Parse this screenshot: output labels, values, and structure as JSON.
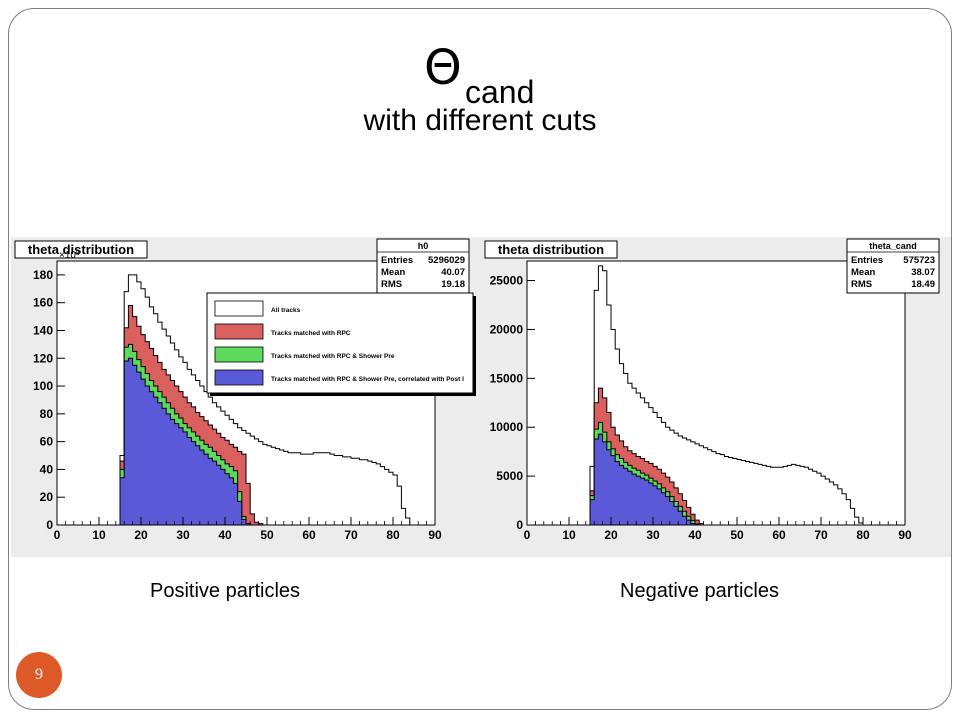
{
  "slide": {
    "title_symbol": "Θ",
    "title_subscript": "cand",
    "subtitle": "with different cuts",
    "slide_number": "9",
    "caption_left": "Positive particles",
    "caption_right": "Negative particles"
  },
  "chart_data": [
    {
      "type": "histogram",
      "title": "theta distribution",
      "stats": {
        "name": "h0",
        "rows": [
          [
            "Entries",
            "5296029"
          ],
          [
            "Mean",
            "40.07"
          ],
          [
            "RMS",
            "19.18"
          ]
        ]
      },
      "y_multiplier": "×10³",
      "xlim": [
        0,
        90
      ],
      "ylim": [
        0,
        190
      ],
      "x_ticks": [
        0,
        10,
        20,
        30,
        40,
        50,
        60,
        70,
        80,
        90
      ],
      "y_ticks": [
        0,
        20,
        40,
        60,
        80,
        100,
        120,
        140,
        160,
        180
      ],
      "bin_width": 1,
      "x_start": 15,
      "legend": [
        {
          "label": "All tracks",
          "color": "#ffffff"
        },
        {
          "label": "Tracks matched with RPC",
          "color": "#d9605f"
        },
        {
          "label": "Tracks matched with RPC & Shower Pre",
          "color": "#5dd95d"
        },
        {
          "label": "Tracks matched with RPC & Shower Pre, correlated with Post I",
          "color": "#5a5ad9"
        }
      ],
      "series": [
        {
          "name": "All tracks",
          "color": "#ffffff",
          "values": [
            50,
            168,
            180,
            180,
            175,
            170,
            164,
            157,
            152,
            146,
            141,
            136,
            131,
            126,
            121,
            117,
            112,
            108,
            104,
            100,
            96,
            92,
            88,
            85,
            82,
            79,
            76,
            73,
            70,
            68,
            66,
            64,
            62,
            60,
            58,
            57,
            56,
            55,
            54,
            53,
            52,
            52,
            52,
            51,
            51,
            51,
            52,
            52,
            52,
            52,
            51,
            50,
            50,
            49,
            49,
            48,
            48,
            47,
            47,
            46,
            45,
            44,
            42,
            40,
            38,
            36,
            28,
            12,
            5,
            0
          ]
        },
        {
          "name": "Tracks matched with RPC",
          "color": "#d9605f",
          "values": [
            46,
            142,
            158,
            150,
            143,
            137,
            132,
            127,
            122,
            117,
            112,
            108,
            104,
            100,
            96,
            92,
            88,
            85,
            81,
            78,
            75,
            72,
            69,
            66,
            63,
            61,
            58,
            56,
            53,
            51,
            30,
            8,
            2,
            1,
            0
          ]
        },
        {
          "name": "Tracks matched with RPC & Shower Pre",
          "color": "#5dd95d",
          "values": [
            40,
            128,
            130,
            125,
            119,
            114,
            109,
            104,
            100,
            96,
            92,
            88,
            84,
            80,
            77,
            73,
            70,
            67,
            64,
            61,
            58,
            56,
            53,
            50,
            47,
            44,
            42,
            39,
            24,
            6,
            1,
            0
          ]
        },
        {
          "name": "Tracks matched with RPC & Shower Pre, correlated with Post I",
          "color": "#5a5ad9",
          "values": [
            34,
            118,
            120,
            115,
            110,
            105,
            100,
            96,
            92,
            88,
            84,
            80,
            76,
            73,
            70,
            67,
            63,
            60,
            57,
            54,
            51,
            48,
            46,
            43,
            40,
            37,
            34,
            30,
            17,
            4,
            1,
            0
          ]
        }
      ]
    },
    {
      "type": "histogram",
      "title": "theta distribution",
      "stats": {
        "name": "theta_cand",
        "rows": [
          [
            "Entries",
            "575723"
          ],
          [
            "Mean",
            "38.07"
          ],
          [
            "RMS",
            "18.49"
          ]
        ]
      },
      "xlim": [
        0,
        90
      ],
      "ylim": [
        0,
        27000
      ],
      "x_ticks": [
        0,
        10,
        20,
        30,
        40,
        50,
        60,
        70,
        80,
        90
      ],
      "y_ticks": [
        0,
        5000,
        10000,
        15000,
        20000,
        25000
      ],
      "bin_width": 1,
      "x_start": 15,
      "series": [
        {
          "name": "All tracks",
          "color": "#ffffff",
          "values": [
            6000,
            24000,
            26500,
            26000,
            22500,
            20000,
            18000,
            16500,
            15500,
            14500,
            14000,
            13500,
            13000,
            12500,
            12000,
            11500,
            11000,
            10500,
            10000,
            9700,
            9400,
            9100,
            8900,
            8700,
            8500,
            8300,
            8100,
            7900,
            7700,
            7500,
            7300,
            7200,
            7000,
            6900,
            6800,
            6700,
            6600,
            6500,
            6400,
            6300,
            6200,
            6100,
            6000,
            5900,
            5900,
            5900,
            6000,
            6100,
            6200,
            6100,
            6000,
            5900,
            5700,
            5500,
            5300,
            5000,
            4700,
            4400,
            4100,
            3700,
            3200,
            2600,
            1700,
            800,
            200,
            0
          ]
        },
        {
          "name": "Tracks matched with RPC",
          "color": "#d9605f",
          "values": [
            3500,
            12500,
            14000,
            13000,
            11500,
            10000,
            9200,
            8600,
            8000,
            7600,
            7300,
            7000,
            6800,
            6500,
            6300,
            6000,
            5700,
            5300,
            4900,
            4400,
            3800,
            3200,
            2500,
            1800,
            1100,
            500,
            150,
            0
          ]
        },
        {
          "name": "Tracks matched with RPC & Shower Pre",
          "color": "#5dd95d",
          "values": [
            3000,
            9800,
            10500,
            9500,
            8500,
            7800,
            7200,
            6800,
            6400,
            6100,
            5800,
            5600,
            5300,
            5100,
            4800,
            4500,
            4200,
            3800,
            3400,
            2900,
            2400,
            1900,
            1400,
            900,
            450,
            100,
            0
          ]
        },
        {
          "name": "Tracks matched with RPC & Shower Pre, correlated with Post I",
          "color": "#5a5ad9",
          "values": [
            2600,
            8800,
            9300,
            8500,
            7700,
            7100,
            6500,
            6100,
            5800,
            5500,
            5200,
            5000,
            4800,
            4600,
            4300,
            4000,
            3700,
            3300,
            2900,
            2400,
            1900,
            1400,
            900,
            500,
            150,
            0
          ]
        }
      ]
    }
  ]
}
